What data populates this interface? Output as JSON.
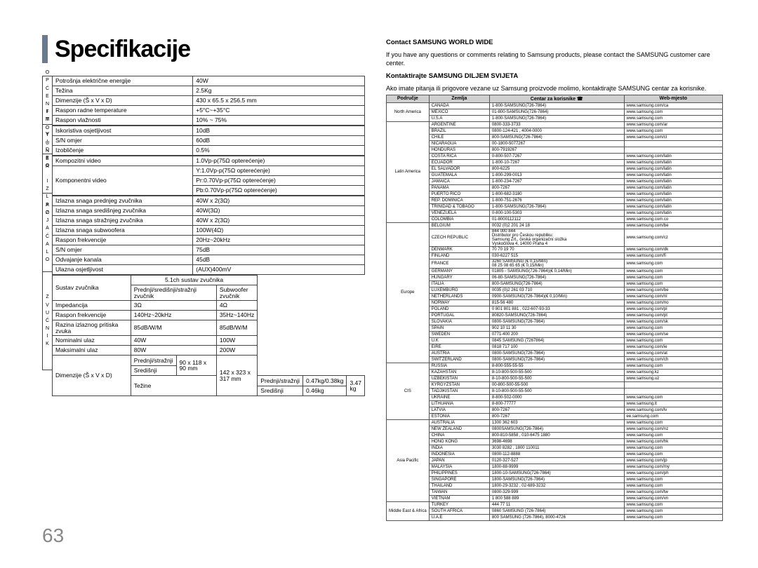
{
  "page_number": "63",
  "title": "Specifikacije",
  "vlabels": [
    "O P Ć E N I T O",
    "F M   T U N E R",
    "V I D E O   I Z L A Z",
    "P O J A Č A L O",
    "Z V U Č N I K"
  ],
  "spec_rows_general": [
    [
      "Potrošnja električne energije",
      "40W"
    ],
    [
      "Težina",
      "2.5Kg"
    ],
    [
      "Dimenzije  (Š x V x D)",
      "430 x 65.5 x 256.5 mm"
    ],
    [
      "Raspon radne temperature",
      "+5°C~+35°C"
    ],
    [
      "Raspon vlažnosti",
      "10% ~ 75%"
    ]
  ],
  "spec_rows_fm": [
    [
      "Iskoristiva osjetljivost",
      "10dB"
    ],
    [
      "S/N omjer",
      "60dB"
    ],
    [
      "Izobličenje",
      "0.5%"
    ]
  ],
  "spec_rows_video": [
    [
      "Kompozitni video",
      "1.0Vp-p(75Ω opterećenje)"
    ],
    [
      "Komponentni video",
      "Y:1.0Vp-p(75Ω opterećenje)"
    ],
    [
      "",
      "Pr:0.70Vp-p(75Ω opterećenje)"
    ],
    [
      "",
      "Pb:0.70Vp-p(75Ω opterećenje)"
    ]
  ],
  "spec_rows_amp": [
    [
      "Izlazna snaga prednjeg zvučnika",
      "40W x 2(3Ω)"
    ],
    [
      "Izlazna snaga središnjeg zvučnika",
      "40W(3Ω)"
    ],
    [
      "Izlazna snaga stražnjeg zvučnika",
      "40W x 2(3Ω)"
    ],
    [
      "Izlazna snaga subwoofera",
      "100W(4Ω)"
    ],
    [
      "Raspon frekvencije",
      "20Hz~20kHz"
    ],
    [
      "S/N omjer",
      "75dB"
    ],
    [
      "Odvajanje kanala",
      "45dB"
    ],
    [
      "Ulazna osjetljivost",
      "(AUX)400mV"
    ]
  ],
  "speaker_header": [
    "Sustav zvučnika",
    "5.1ch sustav zvučnika"
  ],
  "speaker_sub": [
    "Prednji/središnji/stražnji zvučnik",
    "Subwoofer zvučnik"
  ],
  "spec_rows_speaker": [
    [
      "Impedancija",
      "3Ω",
      "4Ω"
    ],
    [
      "Raspon frekvencije",
      "140Hz~20kHz",
      "35Hz~140Hz"
    ],
    [
      "Razina izlaznog pritiska zvuka",
      "85dB/W/M",
      "85dB/W/M"
    ],
    [
      "Nominalni ulaz",
      "40W",
      "100W"
    ],
    [
      "Maksimalni ulaz",
      "80W",
      "200W"
    ]
  ],
  "dim_row": {
    "label": "Dimenzije  (Š x V x D)",
    "sub1": "Prednji/stražnji",
    "sub2": "Središnji",
    "v1": "90 x 118 x 90 mm",
    "v2": "142 x 323 x 317 mm"
  },
  "weight_row": {
    "label": "Težine",
    "sub1": "Prednji/stražnji",
    "sub2": "Središnji",
    "v1": "0.47kg/0.38kg",
    "v2": "0.46kg",
    "v3": "3.47 kg"
  },
  "right": {
    "contact_title": "Contact SAMSUNG WORLD WIDE",
    "contact_text": "If you have any questions or comments relating to Samsung products, please contact the SAMSUNG customer care center.",
    "kontakt_title": "Kontaktirajte SAMSUNG DILJEM SVIJETA",
    "kontakt_text": "Ako imate pitanja ili prigovore vezane uz Samsung proizvode molimo, kontaktirajte SAMSUNG centar za korisnike.",
    "headers": [
      "Područje",
      "Zemlja",
      "Centar za korisnike ☎",
      "Web-mjesto"
    ],
    "regions": [
      {
        "name": "North America",
        "rows": [
          [
            "CANADA",
            "1-800-SAMSUNG(726-7864)",
            "www.samsung.com/ca"
          ],
          [
            "MEXICO",
            "01-800-SAMSUNG(726-7864)",
            "www.samsung.com"
          ],
          [
            "U.S.A",
            "1-800-SAMSUNG(726-7864)",
            "www.samsung.com"
          ]
        ]
      },
      {
        "name": "Latin America",
        "rows": [
          [
            "ARGENTINE",
            "0800-333-3733",
            "www.samsung.com/ar"
          ],
          [
            "BRAZIL",
            "0800-124-421 , 4004-0000",
            "www.samsung.com"
          ],
          [
            "CHILE",
            "800-SAMSUNG(726-7864)",
            "www.samsung.com/cl"
          ],
          [
            "NICARAGUA",
            "00-1800-5077267",
            ""
          ],
          [
            "HONDURAS",
            "800-7919267",
            ""
          ],
          [
            "COSTA RICA",
            "0-800-507-7267",
            "www.samsung.com/latin"
          ],
          [
            "ECUADOR",
            "1-800-10-7267",
            "www.samsung.com/latin"
          ],
          [
            "EL SALVADOR",
            "800-6225",
            "www.samsung.com/latin"
          ],
          [
            "GUATEMALA",
            "1-800-299-0013",
            "www.samsung.com/latin"
          ],
          [
            "JAMAICA",
            "1-800-234-7267",
            "www.samsung.com/latin"
          ],
          [
            "PANAMA",
            "800-7267",
            "www.samsung.com/latin"
          ],
          [
            "PUERTO RICO",
            "1-800-682-3180",
            "www.samsung.com/latin"
          ],
          [
            "REP. DOMINICA",
            "1-800-751-2676",
            "www.samsung.com/latin"
          ],
          [
            "TRINIDAD & TOBAGO",
            "1-800-SAMSUNG(726-7864)",
            "www.samsung.com/latin"
          ],
          [
            "VENEZUELA",
            "0-800-100-5303",
            "www.samsung.com/latin"
          ],
          [
            "COLOMBIA",
            "01-8000112112",
            "www.samsung.com.co"
          ]
        ]
      },
      {
        "name": "Europe",
        "rows": [
          [
            "BELGIUM",
            "0032 (0)2 201 24 18",
            "www.samsung.com/be"
          ],
          [
            "CZECH REPUBLIC",
            "844 000 844\nDistributor pro Českou republiku:\nSamsung Zrt., česká organizační složka\nVyskočilova 4, 14000 Praha 4",
            "www.samsung.com/cz"
          ],
          [
            "DENMARK",
            "70 70 19 70",
            "www.samsung.com/dk"
          ],
          [
            "FINLAND",
            "030-6227 515",
            "www.samsung.com/fi"
          ],
          [
            "FRANCE",
            "3260 SAMSUNG (€ 0,15/Min)\n08 25 08 65 65 (€ 0,15/Min)",
            "www.samsung.com"
          ],
          [
            "GERMANY",
            "01805 - SAMSUNG(726-7864)(€ 0,14/Min)",
            "www.samsung.com"
          ],
          [
            "HUNGARY",
            "06-80-SAMSUNG(726-7864)",
            "www.samsung.com"
          ],
          [
            "ITALIA",
            "800-SAMSUNG(726-7864)",
            "www.samsung.com"
          ],
          [
            "LUXEMBURG",
            "0035 (0)2 261 03 710",
            "www.samsung.com/be"
          ],
          [
            "NETHERLANDS",
            "0900-SAMSUNG(726-7864)(€ 0,10/Min)",
            "www.samsung.com/nl"
          ],
          [
            "NORWAY",
            "815-56 480",
            "www.samsung.com/no"
          ],
          [
            "POLAND",
            "0 801 801 881 , 022-607-93-33",
            "www.samsung.com/pl"
          ],
          [
            "PORTUGAL",
            "80820-SAMSUNG(726-7864)",
            "www.samsung.com/pt"
          ],
          [
            "SLOVAKIA",
            "0800-SAMSUNG(726-7864)",
            "www.samsung.com/sk"
          ],
          [
            "SPAIN",
            "902 10 11 30",
            "www.samsung.com"
          ],
          [
            "SWEDEN",
            "0771-400 200",
            "www.samsung.com/se"
          ],
          [
            "U.K",
            "0845 SAMSUNG (7267864)",
            "www.samsung.com"
          ],
          [
            "EIRE",
            "0818 717 100",
            "www.samsung.com/ie"
          ],
          [
            "AUSTRIA",
            "0800-SAMSUNG(726-7864)",
            "www.samsung.com/at"
          ],
          [
            "SWITZERLAND",
            "0800-SAMSUNG(726-7864)",
            "www.samsung.com/ch"
          ]
        ]
      },
      {
        "name": "CIS",
        "rows": [
          [
            "RUSSIA",
            "8-800-555-55-55",
            "www.samsung.com"
          ],
          [
            "KAZAHSTAN",
            "8-10-800-500-55-500",
            "www.samsung.kz"
          ],
          [
            "UZBEKISTAN",
            "8-10-800-500-55-500",
            "www.samsung.uz"
          ],
          [
            "KYRGYZSTAN",
            "00-800-500-55-500",
            ""
          ],
          [
            "TADJIKISTAN",
            "8-10-800-500-55-500",
            ""
          ],
          [
            "UKRAINE",
            "8-800-502-0000",
            "www.samsung.com"
          ],
          [
            "LITHUANIA",
            "8-800-77777",
            "www.samsung.lt"
          ],
          [
            "LATVIA",
            "800-7267",
            "www.samsung.com/lv"
          ],
          [
            "ESTONIA",
            "800-7267",
            "ee.samsung.com"
          ]
        ]
      },
      {
        "name": "Asia Pacific",
        "rows": [
          [
            "AUSTRALIA",
            "1300 362 603",
            "www.samsung.com"
          ],
          [
            "NEW ZEALAND",
            "0800SAMSUNG(726-7864)",
            "www.samsung.com/nz"
          ],
          [
            "CHINA",
            "800-810-5858 , 010-6475 1880",
            "www.samsung.com"
          ],
          [
            "HONG KONG",
            "3698-4698",
            "www.samsung.com/hk"
          ],
          [
            "INDIA",
            "3030 8282 , 1800 110011",
            "www.samsung.com"
          ],
          [
            "INDONESIA",
            "0800-112-8888",
            "www.samsung.com"
          ],
          [
            "JAPAN",
            "0120-327-527",
            "www.samsung.com/jp"
          ],
          [
            "MALAYSIA",
            "1800-88-9999",
            "www.samsung.com/my"
          ],
          [
            "PHILIPPINES",
            "1800-10-SAMSUNG(726-7864)",
            "www.samsung.com/ph"
          ],
          [
            "SINGAPORE",
            "1800-SAMSUNG(726-7864)",
            "www.samsung.com"
          ],
          [
            "THAILAND",
            "1800-29-3232 , 02-689-3232",
            "www.samsung.com"
          ],
          [
            "TAIWAN",
            "0800-329-999",
            "www.samsung.com/tw"
          ],
          [
            "VIETNAM",
            "1 800 588 889",
            "www.samsung.com/vn"
          ]
        ]
      },
      {
        "name": "Middle East & Africa",
        "rows": [
          [
            "TURKEY",
            "444 77 11",
            "www.samsung.com"
          ],
          [
            "SOUTH AFRICA",
            "0860 SAMSUNG (726-7864)",
            "www.samsung.com"
          ],
          [
            "U.A.E",
            "800 SAMSUNG (726-7864), 8000-4726",
            "www.samsung.com"
          ]
        ]
      }
    ]
  }
}
